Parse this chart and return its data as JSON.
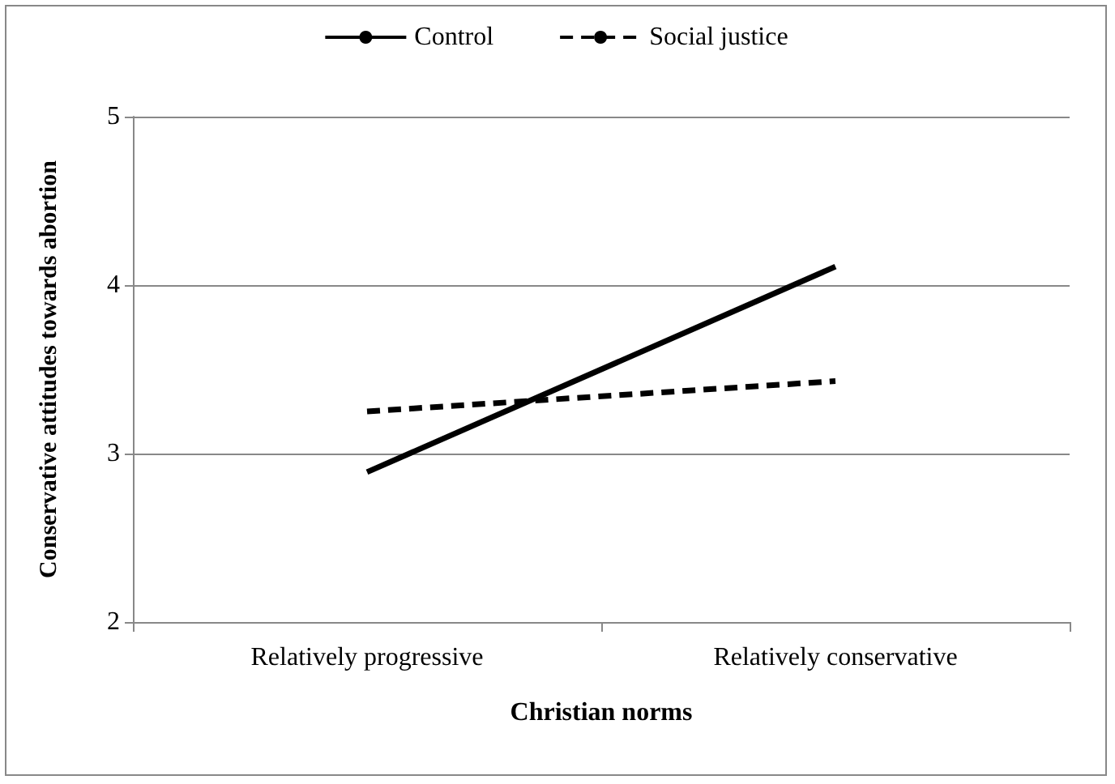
{
  "chart_data": {
    "type": "line",
    "xlabel": "Christian norms",
    "ylabel": "Conservative attitudes towards abortion",
    "categories": [
      "Relatively progressive",
      "Relatively conservative"
    ],
    "series": [
      {
        "name": "Control",
        "color": "#000000",
        "values": [
          2.89,
          4.11
        ],
        "line_style": "solid"
      },
      {
        "name": "Social justice",
        "color": "#000000",
        "values": [
          3.25,
          3.43
        ],
        "line_style": "dashed"
      }
    ],
    "ylim": [
      2,
      5
    ],
    "yticks": [
      2,
      3,
      4,
      5
    ],
    "grid": "y",
    "legend": "top",
    "marker": "none"
  }
}
